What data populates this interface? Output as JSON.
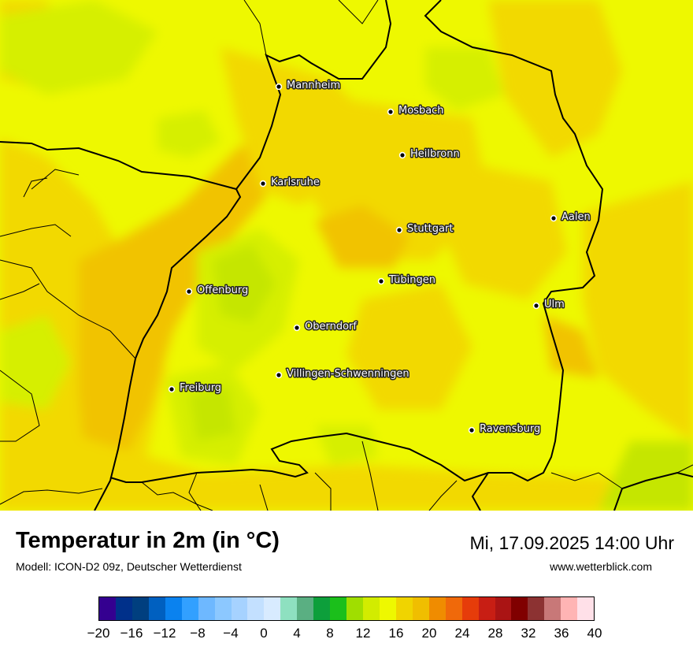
{
  "map": {
    "cities": [
      {
        "name": "Mannheim"
      },
      {
        "name": "Mosbach"
      },
      {
        "name": "Heilbronn"
      },
      {
        "name": "Karlsruhe"
      },
      {
        "name": "Aalen"
      },
      {
        "name": "Stuttgart"
      },
      {
        "name": "Tübingen"
      },
      {
        "name": "Offenburg"
      },
      {
        "name": "Ulm"
      },
      {
        "name": "Oberndorf"
      },
      {
        "name": "Villingen-Schwenningen"
      },
      {
        "name": "Freiburg"
      },
      {
        "name": "Ravensburg"
      }
    ],
    "colors": {
      "base": "#eef800",
      "warm": "#f2d900",
      "warmer": "#f1c300",
      "cool": "#d6ef00",
      "cooler": "#c5e600",
      "boundary": "#000000"
    }
  },
  "header": {
    "title": "Temperatur in 2m (in °C)",
    "model": "Modell: ICON-D2 09z, Deutscher Wetterdienst",
    "datetime": "Mi, 17.09.2025 14:00 Uhr",
    "website": "www.wetterblick.com"
  },
  "legend": {
    "min": -20,
    "max": 40,
    "tick_labels": [
      "−20",
      "−16",
      "−12",
      "−8",
      "−4",
      "0",
      "4",
      "8",
      "12",
      "16",
      "20",
      "24",
      "28",
      "32",
      "36",
      "40"
    ],
    "colors": [
      "#340090",
      "#00308a",
      "#003f7f",
      "#0060c0",
      "#0a82ef",
      "#32a0ff",
      "#6eb8ff",
      "#8cc8ff",
      "#a6d2ff",
      "#c3e0ff",
      "#d8ebff",
      "#8ee0c0",
      "#5aaf82",
      "#0d9f3b",
      "#1bbf1b",
      "#a0de00",
      "#d2ec00",
      "#eef800",
      "#f0d400",
      "#f0be00",
      "#f08c00",
      "#f0690a",
      "#e63c0a",
      "#c81e14",
      "#aa1414",
      "#800000",
      "#8c3232",
      "#c87878",
      "#ffb4b4",
      "#ffe0e8"
    ]
  }
}
